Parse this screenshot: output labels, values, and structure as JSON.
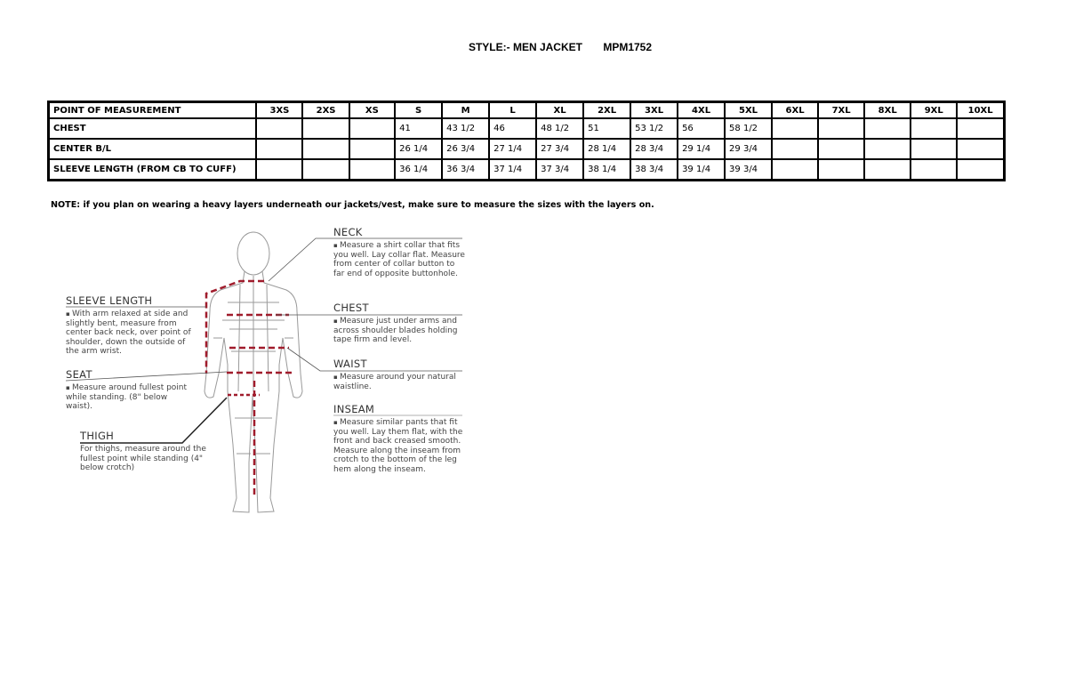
{
  "header": {
    "style_label": "STYLE:- MEN JACKET",
    "style_code": "MPM1752"
  },
  "table": {
    "columns": [
      "POINT OF MEASUREMENT",
      "3XS",
      "2XS",
      "XS",
      "S",
      "M",
      "L",
      "XL",
      "2XL",
      "3XL",
      "4XL",
      "5XL",
      "6XL",
      "7XL",
      "8XL",
      "9XL",
      "10XL"
    ],
    "rows": [
      {
        "label": "CHEST",
        "values": [
          "",
          "",
          "",
          "41",
          "43 1/2",
          "46",
          "48 1/2",
          "51",
          "53 1/2",
          "56",
          "58 1/2",
          "",
          "",
          "",
          "",
          ""
        ]
      },
      {
        "label": "CENTER B/L",
        "values": [
          "",
          "",
          "",
          "26 1/4",
          "26 3/4",
          "27 1/4",
          "27 3/4",
          "28 1/4",
          "28 3/4",
          "29 1/4",
          "29 3/4",
          "",
          "",
          "",
          "",
          ""
        ]
      },
      {
        "label": "SLEEVE LENGTH (FROM CB TO CUFF)",
        "values": [
          "",
          "",
          "",
          "36 1/4",
          "36 3/4",
          "37 1/4",
          "37 3/4",
          "38 1/4",
          "38 3/4",
          "39 1/4",
          "39 3/4",
          "",
          "",
          "",
          "",
          ""
        ]
      }
    ]
  },
  "note": "NOTE: if you plan on wearing a heavy layers underneath our jackets/vest, make sure to measure the sizes with the layers on.",
  "guide": {
    "neck": {
      "title": "NECK",
      "text": "Measure a shirt collar that fits you well. Lay collar flat. Measure from center of collar button to far end of opposite buttonhole."
    },
    "chest": {
      "title": "CHEST",
      "text": "Measure just under arms and across shoulder blades holding tape firm and level."
    },
    "waist": {
      "title": "WAIST",
      "text": "Measure around your natural waistline."
    },
    "inseam": {
      "title": "INSEAM",
      "text": "Measure similar pants that fit you well. Lay them flat, with the front and back creased smooth. Measure along the inseam from crotch to the bottom of the leg hem along the inseam."
    },
    "sleeve": {
      "title": "SLEEVE LENGTH",
      "text": "With arm relaxed at side and slightly bent, measure from center back neck, over point of shoulder, down the outside of the arm wrist."
    },
    "seat": {
      "title": "SEAT",
      "text": "Measure around fullest point while standing. (8\" below waist)."
    },
    "thigh": {
      "title": "THIGH",
      "text": "For thighs, measure around the fullest point while standing (4\" below crotch)"
    }
  },
  "colors": {
    "measure_line": "#a01c2c",
    "figure_line": "#9a9a9a"
  }
}
